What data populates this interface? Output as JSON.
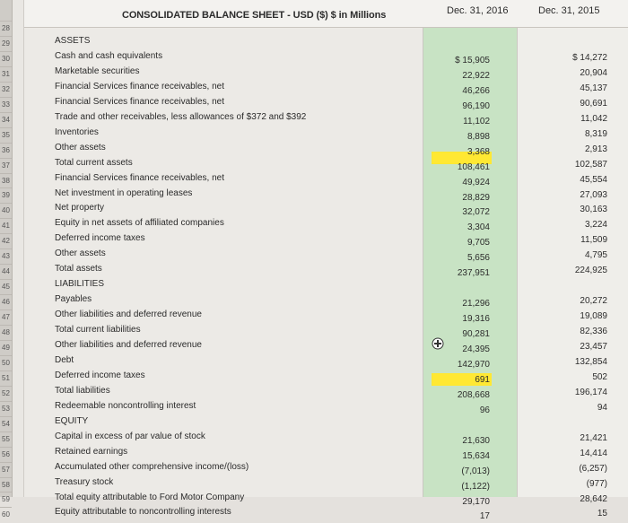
{
  "sheet": {
    "title": "CONSOLIDATED BALANCE SHEET - USD ($) $ in Millions",
    "col1_header": "Dec. 31, 2016",
    "col2_header": "Dec. 31, 2015",
    "row_numbers": [
      "28",
      "29",
      "30",
      "31",
      "32",
      "33",
      "34",
      "35",
      "36",
      "37",
      "38",
      "39",
      "40",
      "41",
      "42",
      "43",
      "44",
      "45",
      "46",
      "47",
      "48",
      "49",
      "50",
      "51",
      "52",
      "53",
      "54",
      "55",
      "56",
      "57",
      "58",
      "59",
      "60"
    ],
    "rows": [
      {
        "label": "ASSETS",
        "v1": "",
        "v2": ""
      },
      {
        "label": "Cash and cash equivalents",
        "v1": "$ 15,905",
        "v2": "$ 14,272"
      },
      {
        "label": "Marketable securities",
        "v1": "22,922",
        "v2": "20,904"
      },
      {
        "label": "Financial Services finance receivables, net",
        "v1": "46,266",
        "v2": "45,137"
      },
      {
        "label": "Financial Services finance receivables, net",
        "v1": "96,190",
        "v2": "90,691"
      },
      {
        "label": "Trade and other receivables, less allowances of $372 and $392",
        "v1": "11,102",
        "v2": "11,042"
      },
      {
        "label": "Inventories",
        "v1": "8,898",
        "v2": "8,319"
      },
      {
        "label": "Other assets",
        "v1": "3,368",
        "v2": "2,913"
      },
      {
        "label": "Total current assets",
        "v1": "108,461",
        "v2": "102,587"
      },
      {
        "label": "Financial Services finance receivables, net",
        "v1": "49,924",
        "v2": "45,554"
      },
      {
        "label": "Net investment in operating leases",
        "v1": "28,829",
        "v2": "27,093"
      },
      {
        "label": "Net property",
        "v1": "32,072",
        "v2": "30,163"
      },
      {
        "label": "Equity in net assets of affiliated companies",
        "v1": "3,304",
        "v2": "3,224"
      },
      {
        "label": "Deferred income taxes",
        "v1": "9,705",
        "v2": "11,509"
      },
      {
        "label": "Other assets",
        "v1": "5,656",
        "v2": "4,795"
      },
      {
        "label": "Total assets",
        "v1": "237,951",
        "v2": "224,925"
      },
      {
        "label": "LIABILITIES",
        "v1": "",
        "v2": ""
      },
      {
        "label": "Payables",
        "v1": "21,296",
        "v2": "20,272"
      },
      {
        "label": "Other liabilities and deferred revenue",
        "v1": "19,316",
        "v2": "19,089"
      },
      {
        "label": "Total current liabilities",
        "v1": "90,281",
        "v2": "82,336"
      },
      {
        "label": "Other liabilities and deferred revenue",
        "v1": "24,395",
        "v2": "23,457"
      },
      {
        "label": "Debt",
        "v1": "142,970",
        "v2": "132,854"
      },
      {
        "label": "Deferred income taxes",
        "v1": "691",
        "v2": "502"
      },
      {
        "label": "Total liabilities",
        "v1": "208,668",
        "v2": "196,174"
      },
      {
        "label": "Redeemable noncontrolling interest",
        "v1": "96",
        "v2": "94"
      },
      {
        "label": "EQUITY",
        "v1": "",
        "v2": ""
      },
      {
        "label": "Capital in excess of par value of stock",
        "v1": "21,630",
        "v2": "21,421"
      },
      {
        "label": "Retained earnings",
        "v1": "15,634",
        "v2": "14,414"
      },
      {
        "label": "Accumulated other comprehensive income/(loss)",
        "v1": "(7,013)",
        "v2": "(6,257)"
      },
      {
        "label": "Treasury stock",
        "v1": "(1,122)",
        "v2": "(977)"
      },
      {
        "label": "Total equity attributable to Ford Motor Company",
        "v1": "29,170",
        "v2": "28,642"
      },
      {
        "label": "Equity attributable to noncontrolling interests",
        "v1": "17",
        "v2": "15"
      }
    ],
    "highlight_color": "#ffe833",
    "green_column_color": "#c8e3c4",
    "cursor_icon": "crosshair-plus-icon"
  }
}
